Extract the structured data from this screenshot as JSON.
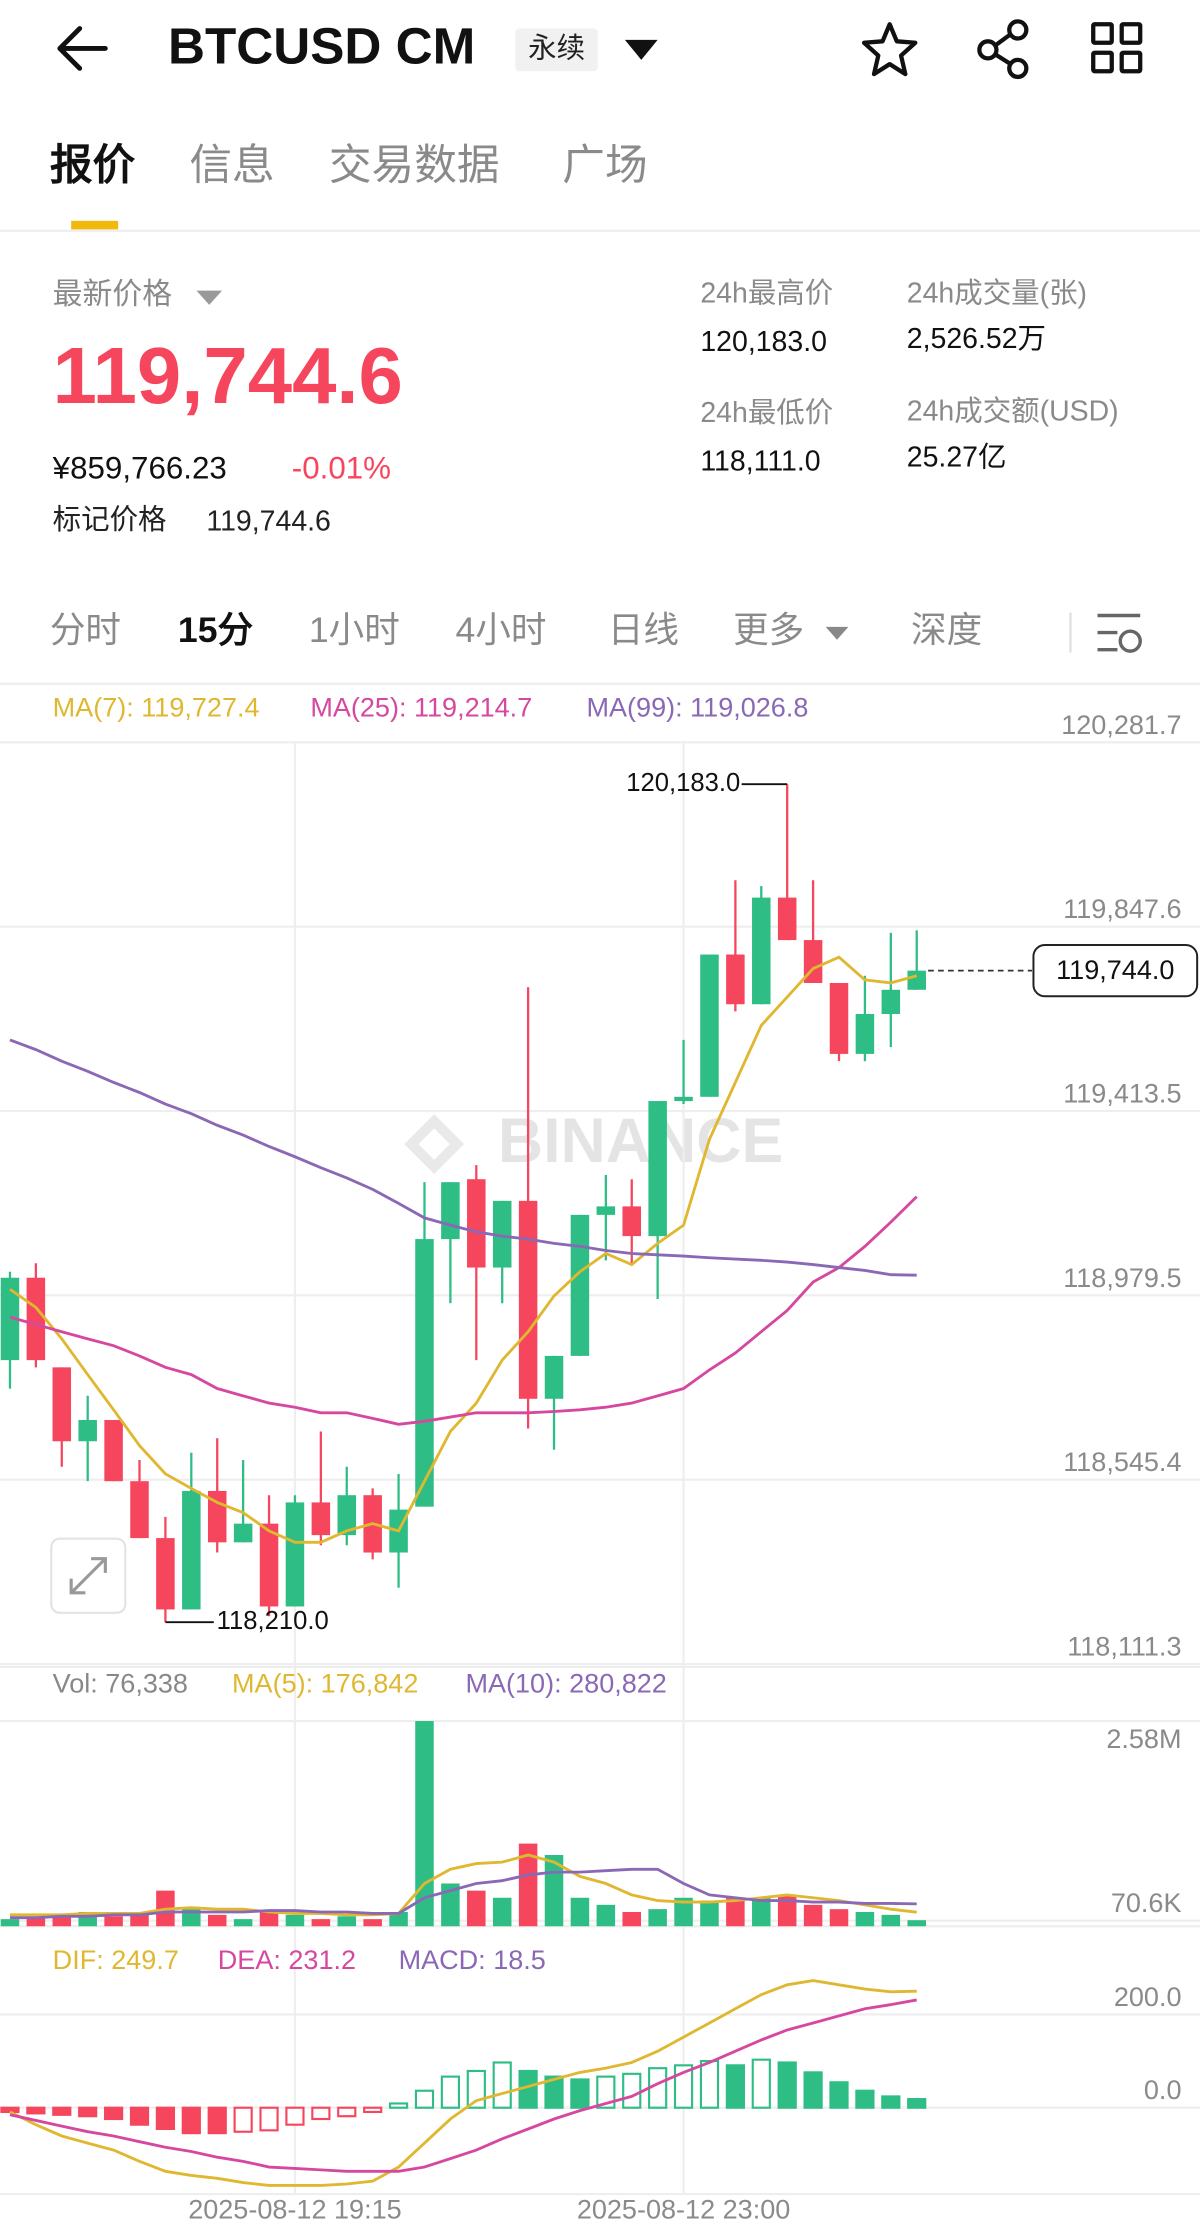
{
  "header": {
    "title": "BTCUSD CM",
    "badge": "永续"
  },
  "tabs": [
    "报价",
    "信息",
    "交易数据",
    "广场"
  ],
  "price": {
    "label": "最新价格",
    "last": "119,744.6",
    "cny": "¥859,766.23",
    "change": "-0.01%",
    "mark_label": "标记价格",
    "mark": "119,744.6"
  },
  "stats": [
    {
      "label": "24h最高价",
      "value": "120,183.0"
    },
    {
      "label": "24h最低价",
      "value": "118,111.0"
    },
    {
      "label": "24h成交量(张)",
      "value": "2,526.52万"
    },
    {
      "label": "24h成交额(USD)",
      "value": "25.27亿"
    }
  ],
  "intervals": [
    "分时",
    "15分",
    "1小时",
    "4小时",
    "日线",
    "更多",
    "深度"
  ],
  "watermark": "BINANCE",
  "chart_data": [
    {
      "type": "candlestick",
      "up_color": "#2ebd85",
      "down_color": "#f6465d",
      "categories": [
        null,
        null,
        null,
        null,
        null,
        null,
        null,
        null,
        null,
        null,
        null,
        "2025-08-12 19:15",
        null,
        null,
        null,
        null,
        null,
        null,
        null,
        null,
        null,
        null,
        null,
        null,
        null,
        null,
        "2025-08-12 23:00",
        null,
        null,
        null,
        null,
        null,
        null,
        null,
        null,
        null
      ],
      "open": [
        118827,
        119021,
        118810,
        118636,
        118686,
        118542,
        118408,
        118240,
        118519,
        118398,
        118442,
        118247,
        118492,
        118415,
        118509,
        118374,
        118482,
        119112,
        119253,
        119045,
        119202,
        118736,
        118837,
        119169,
        119189,
        119119,
        119437,
        119447,
        119782,
        119665,
        119916,
        119816,
        119715,
        119548,
        119642,
        119699
      ],
      "high": [
        119035,
        119055,
        118810,
        118743,
        118686,
        118592,
        118458,
        118609,
        118643,
        118592,
        118509,
        118509,
        118659,
        118576,
        118525,
        118559,
        119246,
        119246,
        119286,
        119202,
        119705,
        118837,
        119169,
        119263,
        119253,
        119437,
        119581,
        119782,
        119957,
        119943,
        120183,
        119957,
        119715,
        119732,
        119833,
        119839
      ],
      "low": [
        118760,
        118810,
        118576,
        118542,
        118542,
        118408,
        118210,
        118240,
        118374,
        118398,
        118224,
        118247,
        118391,
        118391,
        118358,
        118291,
        118482,
        118961,
        118827,
        118961,
        118666,
        118616,
        118837,
        119062,
        119052,
        118971,
        119430,
        119447,
        119648,
        119665,
        119816,
        119715,
        119531,
        119531,
        119564,
        119699
      ],
      "close": [
        119021,
        118827,
        118636,
        118686,
        118542,
        118408,
        118240,
        118519,
        118398,
        118442,
        118247,
        118492,
        118415,
        118509,
        118374,
        118475,
        119112,
        119246,
        119045,
        119202,
        118736,
        118837,
        119169,
        119189,
        119119,
        119437,
        119447,
        119782,
        119665,
        119916,
        119816,
        119715,
        119548,
        119642,
        119699,
        119744
      ],
      "series": [
        {
          "name": "MA(7): 119,727.4",
          "color": "#e0b730",
          "values": [
            118994,
            118951,
            118877,
            118793,
            118710,
            118626,
            118559,
            118525,
            118492,
            118468,
            118425,
            118398,
            118398,
            118425,
            118442,
            118425,
            118542,
            118659,
            118726,
            118827,
            118894,
            118978,
            119035,
            119078,
            119052,
            119102,
            119145,
            119347,
            119481,
            119615,
            119682,
            119749,
            119776,
            119722,
            119715,
            119732
          ]
        },
        {
          "name": "MA(25): 119,214.7",
          "color": "#d6489f",
          "values": [
            118928,
            118911,
            118894,
            118877,
            118861,
            118837,
            118810,
            118793,
            118760,
            118743,
            118726,
            118716,
            118703,
            118703,
            118690,
            118676,
            118683,
            118693,
            118703,
            118703,
            118703,
            118706,
            118710,
            118716,
            118726,
            118743,
            118760,
            118804,
            118844,
            118894,
            118944,
            119011,
            119045,
            119095,
            119152,
            119212
          ]
        },
        {
          "name": "MA(99): 119,026.8",
          "color": "#8a68b5",
          "values": [
            119581,
            119558,
            119531,
            119507,
            119481,
            119457,
            119430,
            119407,
            119380,
            119357,
            119330,
            119306,
            119280,
            119256,
            119229,
            119196,
            119162,
            119145,
            119129,
            119119,
            119112,
            119102,
            119095,
            119085,
            119078,
            119075,
            119072,
            119068,
            119065,
            119062,
            119058,
            119052,
            119045,
            119038,
            119028,
            119027
          ]
        }
      ],
      "ylim": [
        118111.3,
        120281.7
      ],
      "yticks": [
        {
          "value": 120281.7,
          "label": "120,281.7"
        },
        {
          "value": 119847.6,
          "label": "119,847.6"
        },
        {
          "value": 119413.5,
          "label": "119,413.5"
        },
        {
          "value": 118979.5,
          "label": "118,979.5"
        },
        {
          "value": 118545.4,
          "label": "118,545.4"
        },
        {
          "value": 118111.3,
          "label": "118,111.3"
        }
      ],
      "annotations": {
        "high": {
          "value": 120183.0,
          "label": "120,183.0"
        },
        "low": {
          "value": 118210.0,
          "label": "118,210.0"
        },
        "last": {
          "value": 119744.0,
          "label": "119,744.0"
        }
      }
    },
    {
      "type": "bar",
      "name": "Vol: 76,338",
      "values": [
        89600,
        107500,
        143300,
        179200,
        125400,
        143300,
        447900,
        215000,
        143300,
        89600,
        179200,
        143300,
        89600,
        125400,
        89600,
        179200,
        2580000,
        537500,
        447900,
        358300,
        1039200,
        895800,
        358300,
        268800,
        179200,
        215000,
        358300,
        322500,
        358300,
        358300,
        394200,
        268800,
        215000,
        179200,
        143300,
        76338
      ],
      "series": [
        {
          "name": "MA(5): 176,842",
          "color": "#e0b730",
          "values": [
            143300,
            143300,
            143300,
            161300,
            161300,
            161300,
            215000,
            232900,
            215000,
            215000,
            179200,
            161300,
            161300,
            143300,
            143300,
            161300,
            537500,
            716700,
            788300,
            806300,
            895800,
            806300,
            627100,
            537500,
            394200,
            322500,
            304600,
            304600,
            322500,
            358300,
            394200,
            358300,
            322500,
            268800,
            215000,
            176842
          ]
        },
        {
          "name": "MA(10): 280,822",
          "color": "#8a68b5",
          "values": [
            107500,
            107500,
            125400,
            125400,
            143300,
            143300,
            179200,
            179200,
            179200,
            179200,
            197100,
            197100,
            179200,
            179200,
            161300,
            161300,
            358300,
            447900,
            537500,
            573300,
            645000,
            680800,
            680800,
            698800,
            716700,
            716700,
            537500,
            394200,
            358300,
            322500,
            322500,
            304600,
            304600,
            286700,
            286700,
            280822
          ]
        }
      ],
      "ylim": [
        0,
        3260000
      ],
      "yticks": [
        {
          "value": 2580000,
          "label": "2.58M"
        },
        {
          "value": 70600,
          "label": "70.6K"
        }
      ]
    },
    {
      "type": "macd",
      "name": "MACD: 18.5",
      "up_color": "#2ebd85",
      "down_color": "#f6465d",
      "values": [
        -9.1,
        -12.1,
        -15.2,
        -18.2,
        -24.2,
        -36.4,
        -45.5,
        -54.5,
        -54.5,
        -51.5,
        -48.5,
        -36.4,
        -24.2,
        -18.2,
        -9.1,
        9.1,
        36.4,
        66.7,
        78.8,
        97,
        78.8,
        66.7,
        60.6,
        66.7,
        72.7,
        84.8,
        90.9,
        100,
        90.9,
        103,
        97,
        75.8,
        54.5,
        36.4,
        24.2,
        18.5
      ],
      "series": [
        {
          "name": "DIF: 249.7",
          "color": "#e0b730",
          "values": [
            -9.1,
            -36.4,
            -60.6,
            -75.8,
            -90.9,
            -115.1,
            -136.4,
            -145.4,
            -151.5,
            -160.6,
            -166.7,
            -166.7,
            -166.7,
            -163.6,
            -157.6,
            -127.3,
            -75.8,
            -24.2,
            15.2,
            30.3,
            45.5,
            60.6,
            75.8,
            84.8,
            97,
            121.2,
            151.5,
            181.8,
            212.1,
            242.4,
            263.6,
            272.7,
            263.6,
            254.5,
            248.5,
            249.7
          ]
        },
        {
          "name": "DEA: 231.2",
          "color": "#d6489f",
          "values": [
            -15.2,
            -27.3,
            -39.4,
            -51.5,
            -60.6,
            -72.7,
            -84.8,
            -93.9,
            -106.1,
            -115.1,
            -127.3,
            -130.3,
            -133.3,
            -136.4,
            -136.4,
            -136.4,
            -127.3,
            -109.1,
            -90.9,
            -66.7,
            -45.5,
            -24.2,
            -6.1,
            9.1,
            24.2,
            51.5,
            75.8,
            97,
            121.2,
            145.4,
            166.7,
            181.8,
            197,
            212.1,
            221.2,
            231.2
          ]
        }
      ],
      "ylim": [
        -170,
        380
      ],
      "yticks": [
        {
          "value": 200,
          "label": "200.0"
        },
        {
          "value": 0,
          "label": "0.0"
        }
      ]
    }
  ]
}
